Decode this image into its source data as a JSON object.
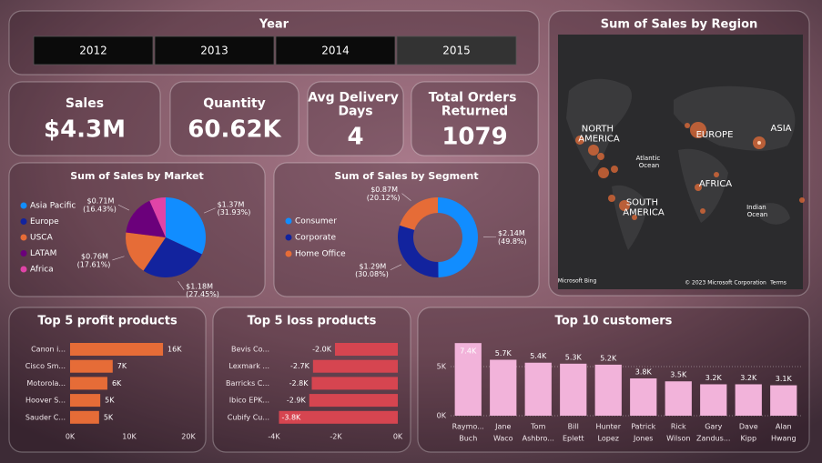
{
  "slicer": {
    "title": "Year",
    "options": [
      "2012",
      "2013",
      "2014",
      "2015"
    ]
  },
  "cards": [
    {
      "title": "Sales",
      "value": "$4.3M"
    },
    {
      "title": "Quantity",
      "value": "60.62K"
    },
    {
      "title": "Avg Delivery Days",
      "value": "4"
    },
    {
      "title": "Total Orders Returned",
      "value": "1079"
    }
  ],
  "map": {
    "title": "Sum of Sales by Region",
    "labels": [
      "NORTH AMERICA",
      "EUROPE",
      "ASIA",
      "Atlantic Ocean",
      "AFRICA",
      "SOUTH AMERICA",
      "Indian Ocean",
      "Microsoft Bing",
      "© 2023 Microsoft Corporation",
      "Terms"
    ]
  },
  "chart_data": [
    {
      "type": "pie",
      "title": "Sum of Sales by Market",
      "categories": [
        "Asia Pacific",
        "Europe",
        "USCA",
        "LATAM",
        "Africa"
      ],
      "values": [
        31.93,
        27.45,
        17.61,
        16.43,
        6.58
      ],
      "value_labels": [
        "$1.37M (31.93%)",
        "$1.18M (27.45%)",
        "$0.76M (17.61%)",
        "$0.71M (16.43%)",
        null
      ],
      "colors": [
        "#118dff",
        "#12239e",
        "#e66c37",
        "#6b007b",
        "#e044a7"
      ],
      "legend": "left"
    },
    {
      "type": "donut",
      "title": "Sum of Sales by Segment",
      "categories": [
        "Consumer",
        "Corporate",
        "Home Office"
      ],
      "values": [
        49.8,
        30.08,
        20.12
      ],
      "value_labels": [
        "$2.14M (49.8%)",
        "$1.29M (30.08%)",
        "$0.87M (20.12%)"
      ],
      "colors": [
        "#118dff",
        "#12239e",
        "#e66c37"
      ],
      "legend": "left"
    },
    {
      "type": "hbar",
      "title": "Top 5 profit products",
      "categories": [
        "Canon i...",
        "Cisco Sm...",
        "Motorola...",
        "Hoover S...",
        "Sauder C..."
      ],
      "values": [
        15700,
        7200,
        6300,
        5100,
        4900
      ],
      "value_labels": [
        "16K",
        "7K",
        "6K",
        "5K",
        "5K"
      ],
      "color": "#e66c37",
      "xlim": [
        0,
        20000
      ],
      "xticks": [
        {
          "value": 0,
          "label": "0K"
        },
        {
          "value": 10000,
          "label": "10K"
        },
        {
          "value": 20000,
          "label": "20K"
        }
      ]
    },
    {
      "type": "hbar",
      "title": "Top 5 loss products",
      "categories": [
        "Bevis Co...",
        "Lexmark ...",
        "Barricks C...",
        "Ibico EPK...",
        "Cubify Cu..."
      ],
      "values": [
        -2030,
        -2740,
        -2780,
        -2860,
        -3840
      ],
      "value_labels": [
        "-2.0K",
        "-2.7K",
        "-2.8K",
        "-2.9K",
        "-3.8K"
      ],
      "color": "#d64550",
      "xlim": [
        -4000,
        0
      ],
      "xticks": [
        {
          "value": -4000,
          "label": "-4K"
        },
        {
          "value": -2000,
          "label": "-2K"
        },
        {
          "value": 0,
          "label": "0K"
        }
      ]
    },
    {
      "type": "bar",
      "title": "Top 10 customers",
      "categories": [
        [
          "Raymo...",
          "Buch"
        ],
        [
          "Jane",
          "Waco"
        ],
        [
          "Tom",
          "Ashbro..."
        ],
        [
          "Bill",
          "Eplett"
        ],
        [
          "Hunter",
          "Lopez"
        ],
        [
          "Patrick",
          "Jones"
        ],
        [
          "Rick",
          "Wilson"
        ],
        [
          "Gary",
          "Zandus..."
        ],
        [
          "Dave",
          "Kipp"
        ],
        [
          "Alan",
          "Hwang"
        ]
      ],
      "values": [
        7400,
        5700,
        5400,
        5300,
        5200,
        3800,
        3500,
        3200,
        3200,
        3100
      ],
      "value_labels": [
        "7.4K",
        "5.7K",
        "5.4K",
        "5.3K",
        "5.2K",
        "3.8K",
        "3.5K",
        "3.2K",
        "3.2K",
        "3.1K"
      ],
      "color": "#f2b3da",
      "ylim": [
        0,
        7600
      ],
      "yticks": [
        {
          "value": 0,
          "label": "0K"
        },
        {
          "value": 5000,
          "label": "5K"
        }
      ],
      "grid": true
    }
  ]
}
